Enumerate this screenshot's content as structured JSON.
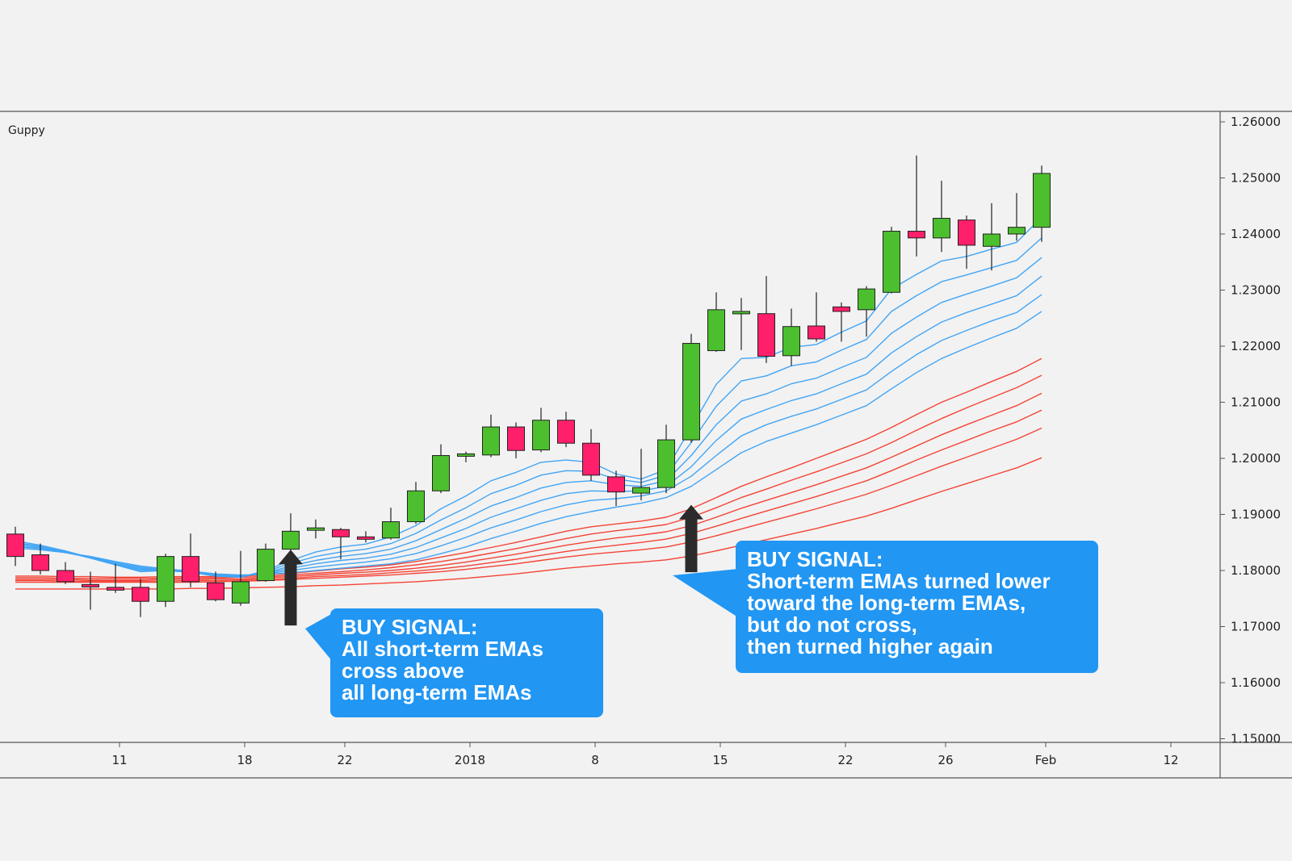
{
  "chart_data": {
    "type": "candlestick",
    "title": "Guppy",
    "y_range": [
      1.15,
      1.26
    ],
    "y_ticks": [
      "1.26000",
      "1.25000",
      "1.24000",
      "1.23000",
      "1.22000",
      "1.21000",
      "1.20000",
      "1.19000",
      "1.18000",
      "1.17000",
      "1.16000",
      "1.15000"
    ],
    "x_ticks": [
      {
        "label": "11",
        "index": 4
      },
      {
        "label": "18",
        "index": 9
      },
      {
        "label": "22",
        "index": 13
      },
      {
        "label": "2018",
        "index": 18
      },
      {
        "label": "8",
        "index": 23
      },
      {
        "label": "15",
        "index": 28
      },
      {
        "label": "22",
        "index": 33
      },
      {
        "label": "26",
        "index": 37
      },
      {
        "label": "Feb",
        "index": 41
      },
      {
        "label": "12",
        "index": 46
      }
    ],
    "candles": [
      {
        "o": 1.1865,
        "h": 1.1878,
        "l": 1.1808,
        "c": 1.1825
      },
      {
        "o": 1.1828,
        "h": 1.1848,
        "l": 1.1793,
        "c": 1.18
      },
      {
        "o": 1.18,
        "h": 1.1815,
        "l": 1.1776,
        "c": 1.178
      },
      {
        "o": 1.1775,
        "h": 1.1798,
        "l": 1.173,
        "c": 1.1772
      },
      {
        "o": 1.177,
        "h": 1.1812,
        "l": 1.176,
        "c": 1.1765
      },
      {
        "o": 1.177,
        "h": 1.1785,
        "l": 1.1717,
        "c": 1.1745
      },
      {
        "o": 1.1745,
        "h": 1.183,
        "l": 1.1735,
        "c": 1.1825
      },
      {
        "o": 1.1825,
        "h": 1.1866,
        "l": 1.177,
        "c": 1.178
      },
      {
        "o": 1.1778,
        "h": 1.1798,
        "l": 1.1745,
        "c": 1.1748
      },
      {
        "o": 1.1742,
        "h": 1.1835,
        "l": 1.1737,
        "c": 1.178
      },
      {
        "o": 1.1782,
        "h": 1.1848,
        "l": 1.178,
        "c": 1.1838
      },
      {
        "o": 1.1838,
        "h": 1.1902,
        "l": 1.1833,
        "c": 1.187
      },
      {
        "o": 1.1873,
        "h": 1.1891,
        "l": 1.1857,
        "c": 1.1876
      },
      {
        "o": 1.1873,
        "h": 1.1876,
        "l": 1.182,
        "c": 1.186
      },
      {
        "o": 1.186,
        "h": 1.187,
        "l": 1.185,
        "c": 1.1858
      },
      {
        "o": 1.1858,
        "h": 1.1912,
        "l": 1.1855,
        "c": 1.1887
      },
      {
        "o": 1.1887,
        "h": 1.1958,
        "l": 1.1883,
        "c": 1.1942
      },
      {
        "o": 1.1942,
        "h": 1.2025,
        "l": 1.1938,
        "c": 1.2005
      },
      {
        "o": 1.2005,
        "h": 1.2012,
        "l": 1.1993,
        "c": 1.2008
      },
      {
        "o": 1.2006,
        "h": 1.2078,
        "l": 1.2002,
        "c": 1.2056
      },
      {
        "o": 1.2056,
        "h": 1.2064,
        "l": 1.2,
        "c": 1.2014
      },
      {
        "o": 1.2015,
        "h": 1.209,
        "l": 1.2011,
        "c": 1.2068
      },
      {
        "o": 1.2068,
        "h": 1.2083,
        "l": 1.202,
        "c": 1.2027
      },
      {
        "o": 1.2027,
        "h": 1.2052,
        "l": 1.196,
        "c": 1.197
      },
      {
        "o": 1.1967,
        "h": 1.1978,
        "l": 1.1915,
        "c": 1.194
      },
      {
        "o": 1.1938,
        "h": 1.2017,
        "l": 1.1925,
        "c": 1.1948
      },
      {
        "o": 1.1948,
        "h": 1.206,
        "l": 1.1938,
        "c": 1.2033
      },
      {
        "o": 1.2033,
        "h": 1.2222,
        "l": 1.2028,
        "c": 1.2205
      },
      {
        "o": 1.2192,
        "h": 1.2296,
        "l": 1.219,
        "c": 1.2265
      },
      {
        "o": 1.226,
        "h": 1.2286,
        "l": 1.2193,
        "c": 1.2262
      },
      {
        "o": 1.2258,
        "h": 1.2325,
        "l": 1.217,
        "c": 1.2182
      },
      {
        "o": 1.2183,
        "h": 1.2267,
        "l": 1.2165,
        "c": 1.2235
      },
      {
        "o": 1.2236,
        "h": 1.2296,
        "l": 1.2208,
        "c": 1.2213
      },
      {
        "o": 1.227,
        "h": 1.2278,
        "l": 1.2208,
        "c": 1.2262
      },
      {
        "o": 1.2265,
        "h": 1.2307,
        "l": 1.2217,
        "c": 1.2302
      },
      {
        "o": 1.2296,
        "h": 1.2413,
        "l": 1.2294,
        "c": 1.2405
      },
      {
        "o": 1.2405,
        "h": 1.254,
        "l": 1.236,
        "c": 1.2393
      },
      {
        "o": 1.2393,
        "h": 1.2495,
        "l": 1.2368,
        "c": 1.2428
      },
      {
        "o": 1.2425,
        "h": 1.2433,
        "l": 1.2338,
        "c": 1.238
      },
      {
        "o": 1.2378,
        "h": 1.2455,
        "l": 1.2335,
        "c": 1.24
      },
      {
        "o": 1.24,
        "h": 1.2473,
        "l": 1.2388,
        "c": 1.2412
      },
      {
        "o": 1.2412,
        "h": 1.2522,
        "l": 1.2386,
        "c": 1.2508
      }
    ],
    "short_term_emas": [
      [
        1.1853,
        1.1845,
        1.1835,
        1.1823,
        1.181,
        1.1798,
        1.18,
        1.1797,
        1.179,
        1.1788,
        1.18,
        1.1818,
        1.1833,
        1.1842,
        1.1847,
        1.186,
        1.188,
        1.191,
        1.1933,
        1.196,
        1.1975,
        1.1993,
        1.1997,
        1.1993,
        1.1972,
        1.1963,
        1.198,
        1.2055,
        1.2132,
        1.2178,
        1.218,
        1.2198,
        1.2203,
        1.2225,
        1.2245,
        1.2302,
        1.2328,
        1.2352,
        1.236,
        1.2373,
        1.2385,
        1.243
      ],
      [
        1.185,
        1.1843,
        1.1833,
        1.1822,
        1.181,
        1.18,
        1.18,
        1.1797,
        1.179,
        1.1788,
        1.1798,
        1.1813,
        1.1825,
        1.1833,
        1.1838,
        1.1848,
        1.1866,
        1.189,
        1.1912,
        1.1937,
        1.1952,
        1.197,
        1.1978,
        1.1977,
        1.1963,
        1.1957,
        1.197,
        1.2028,
        1.2093,
        1.2138,
        1.2147,
        1.2165,
        1.2172,
        1.2193,
        1.2212,
        1.2262,
        1.229,
        1.2315,
        1.2327,
        1.234,
        1.2353,
        1.2393
      ],
      [
        1.1848,
        1.1842,
        1.1833,
        1.1823,
        1.1811,
        1.1802,
        1.18,
        1.1797,
        1.1791,
        1.1789,
        1.1796,
        1.1808,
        1.1818,
        1.1825,
        1.183,
        1.1838,
        1.1853,
        1.1873,
        1.1893,
        1.1915,
        1.193,
        1.1947,
        1.1957,
        1.196,
        1.1953,
        1.195,
        1.196,
        1.2005,
        1.206,
        1.2102,
        1.2115,
        1.2133,
        1.2143,
        1.2162,
        1.218,
        1.2223,
        1.2252,
        1.2278,
        1.2293,
        1.2307,
        1.2322,
        1.2358
      ],
      [
        1.1845,
        1.184,
        1.1832,
        1.1823,
        1.1812,
        1.1804,
        1.18,
        1.1797,
        1.1792,
        1.179,
        1.1795,
        1.1804,
        1.1812,
        1.1818,
        1.1822,
        1.1829,
        1.1841,
        1.1858,
        1.1875,
        1.1895,
        1.191,
        1.1925,
        1.1937,
        1.1942,
        1.1941,
        1.1942,
        1.195,
        1.1985,
        1.2032,
        1.207,
        1.2087,
        1.2103,
        1.2115,
        1.2133,
        1.215,
        1.2188,
        1.2217,
        1.2243,
        1.226,
        1.2275,
        1.229,
        1.2325
      ],
      [
        1.1843,
        1.1839,
        1.1832,
        1.1824,
        1.1814,
        1.1806,
        1.1801,
        1.1798,
        1.1793,
        1.1791,
        1.1794,
        1.18,
        1.1806,
        1.1811,
        1.1815,
        1.1821,
        1.183,
        1.1844,
        1.1859,
        1.1876,
        1.189,
        1.1905,
        1.1917,
        1.1925,
        1.1928,
        1.1933,
        1.1942,
        1.1968,
        1.2005,
        1.204,
        1.206,
        1.2075,
        1.2088,
        1.2105,
        1.2122,
        1.2155,
        1.2185,
        1.221,
        1.2228,
        1.2245,
        1.226,
        1.2292
      ],
      [
        1.184,
        1.1837,
        1.1832,
        1.1825,
        1.1816,
        1.1808,
        1.1803,
        1.1799,
        1.1794,
        1.1792,
        1.1793,
        1.1796,
        1.18,
        1.1804,
        1.1808,
        1.1812,
        1.1819,
        1.183,
        1.1842,
        1.1857,
        1.187,
        1.1884,
        1.1896,
        1.1905,
        1.1913,
        1.192,
        1.193,
        1.195,
        1.198,
        1.201,
        1.203,
        1.2045,
        1.206,
        1.2077,
        1.2094,
        1.2124,
        1.2153,
        1.2178,
        1.2197,
        1.2215,
        1.2232,
        1.2262
      ]
    ],
    "long_term_emas": [
      [
        1.179,
        1.179,
        1.1789,
        1.1789,
        1.1788,
        1.1788,
        1.1789,
        1.1789,
        1.1789,
        1.179,
        1.1792,
        1.1795,
        1.1799,
        1.1803,
        1.1806,
        1.181,
        1.1816,
        1.1824,
        1.1832,
        1.1841,
        1.185,
        1.186,
        1.187,
        1.1878,
        1.1883,
        1.1888,
        1.1895,
        1.191,
        1.193,
        1.195,
        1.1967,
        1.1983,
        1.2,
        1.2017,
        1.2034,
        1.2055,
        1.2078,
        1.21,
        1.2118,
        1.2137,
        1.2155,
        1.2178
      ],
      [
        1.1787,
        1.1787,
        1.1786,
        1.1786,
        1.1786,
        1.1786,
        1.1786,
        1.1787,
        1.1787,
        1.1788,
        1.1789,
        1.1792,
        1.1795,
        1.1798,
        1.1801,
        1.1805,
        1.181,
        1.1816,
        1.1823,
        1.1831,
        1.1839,
        1.1848,
        1.1857,
        1.1865,
        1.1871,
        1.1876,
        1.1882,
        1.1895,
        1.1912,
        1.193,
        1.1945,
        1.1961,
        1.1976,
        1.1992,
        1.2008,
        1.2028,
        1.205,
        1.2071,
        1.209,
        1.2108,
        1.2126,
        1.2148
      ],
      [
        1.1784,
        1.1784,
        1.1784,
        1.1783,
        1.1783,
        1.1783,
        1.1784,
        1.1784,
        1.1785,
        1.1785,
        1.1787,
        1.1789,
        1.1792,
        1.1795,
        1.1797,
        1.18,
        1.1804,
        1.1809,
        1.1815,
        1.1822,
        1.1829,
        1.1837,
        1.1845,
        1.1852,
        1.1858,
        1.1863,
        1.1869,
        1.188,
        1.1895,
        1.1911,
        1.1925,
        1.1939,
        1.1953,
        1.1968,
        1.1983,
        1.2002,
        1.2022,
        1.2042,
        1.206,
        1.2077,
        1.2094,
        1.2116
      ],
      [
        1.1782,
        1.1782,
        1.1781,
        1.1781,
        1.1781,
        1.1781,
        1.1781,
        1.1782,
        1.1782,
        1.1783,
        1.1784,
        1.1786,
        1.1789,
        1.1791,
        1.1793,
        1.1796,
        1.1799,
        1.1803,
        1.1808,
        1.1814,
        1.182,
        1.1827,
        1.1834,
        1.184,
        1.1845,
        1.185,
        1.1856,
        1.1866,
        1.1879,
        1.1893,
        1.1906,
        1.1919,
        1.1932,
        1.1946,
        1.196,
        1.1978,
        1.1997,
        1.2015,
        1.2032,
        1.2049,
        1.2065,
        1.2086
      ],
      [
        1.1779,
        1.1779,
        1.1779,
        1.1779,
        1.1779,
        1.1779,
        1.1779,
        1.1779,
        1.178,
        1.1781,
        1.1782,
        1.1784,
        1.1786,
        1.1788,
        1.179,
        1.1792,
        1.1795,
        1.1798,
        1.1802,
        1.1807,
        1.1812,
        1.1818,
        1.1824,
        1.1829,
        1.1833,
        1.1837,
        1.1842,
        1.1851,
        1.1862,
        1.1874,
        1.1886,
        1.1898,
        1.191,
        1.1923,
        1.1936,
        1.1952,
        1.1969,
        1.1986,
        1.2002,
        1.2018,
        1.2034,
        1.2054
      ],
      [
        1.1767,
        1.1767,
        1.1767,
        1.1767,
        1.1767,
        1.1767,
        1.1767,
        1.1768,
        1.1768,
        1.1769,
        1.177,
        1.1771,
        1.1773,
        1.1774,
        1.1776,
        1.1778,
        1.178,
        1.1783,
        1.1786,
        1.179,
        1.1794,
        1.1799,
        1.1804,
        1.1808,
        1.1812,
        1.1815,
        1.1819,
        1.1826,
        1.1835,
        1.1845,
        1.1855,
        1.1865,
        1.1875,
        1.1886,
        1.1897,
        1.1911,
        1.1926,
        1.1941,
        1.1955,
        1.1969,
        1.1983,
        1.2001
      ]
    ],
    "arrows": [
      {
        "index": 11,
        "tip": 1.1837,
        "base": 1.1702
      },
      {
        "index": 27,
        "tip": 1.1917,
        "base": 1.1797
      }
    ],
    "colors": {
      "bullish": "#4cbf2e",
      "bearish": "#ff1f6b",
      "short_ema": "#42a5f5",
      "long_ema": "#f44336",
      "arrow": "#2b2b2b",
      "callout": "#2196f3"
    }
  },
  "callouts": [
    {
      "lines": [
        "BUY SIGNAL:",
        "All short-term EMAs",
        "cross above",
        "all long-term EMAs"
      ]
    },
    {
      "lines": [
        "BUY SIGNAL:",
        "Short-term EMAs turned lower",
        "toward the long-term EMAs,",
        "but do not cross,",
        "then turned higher again"
      ]
    }
  ]
}
